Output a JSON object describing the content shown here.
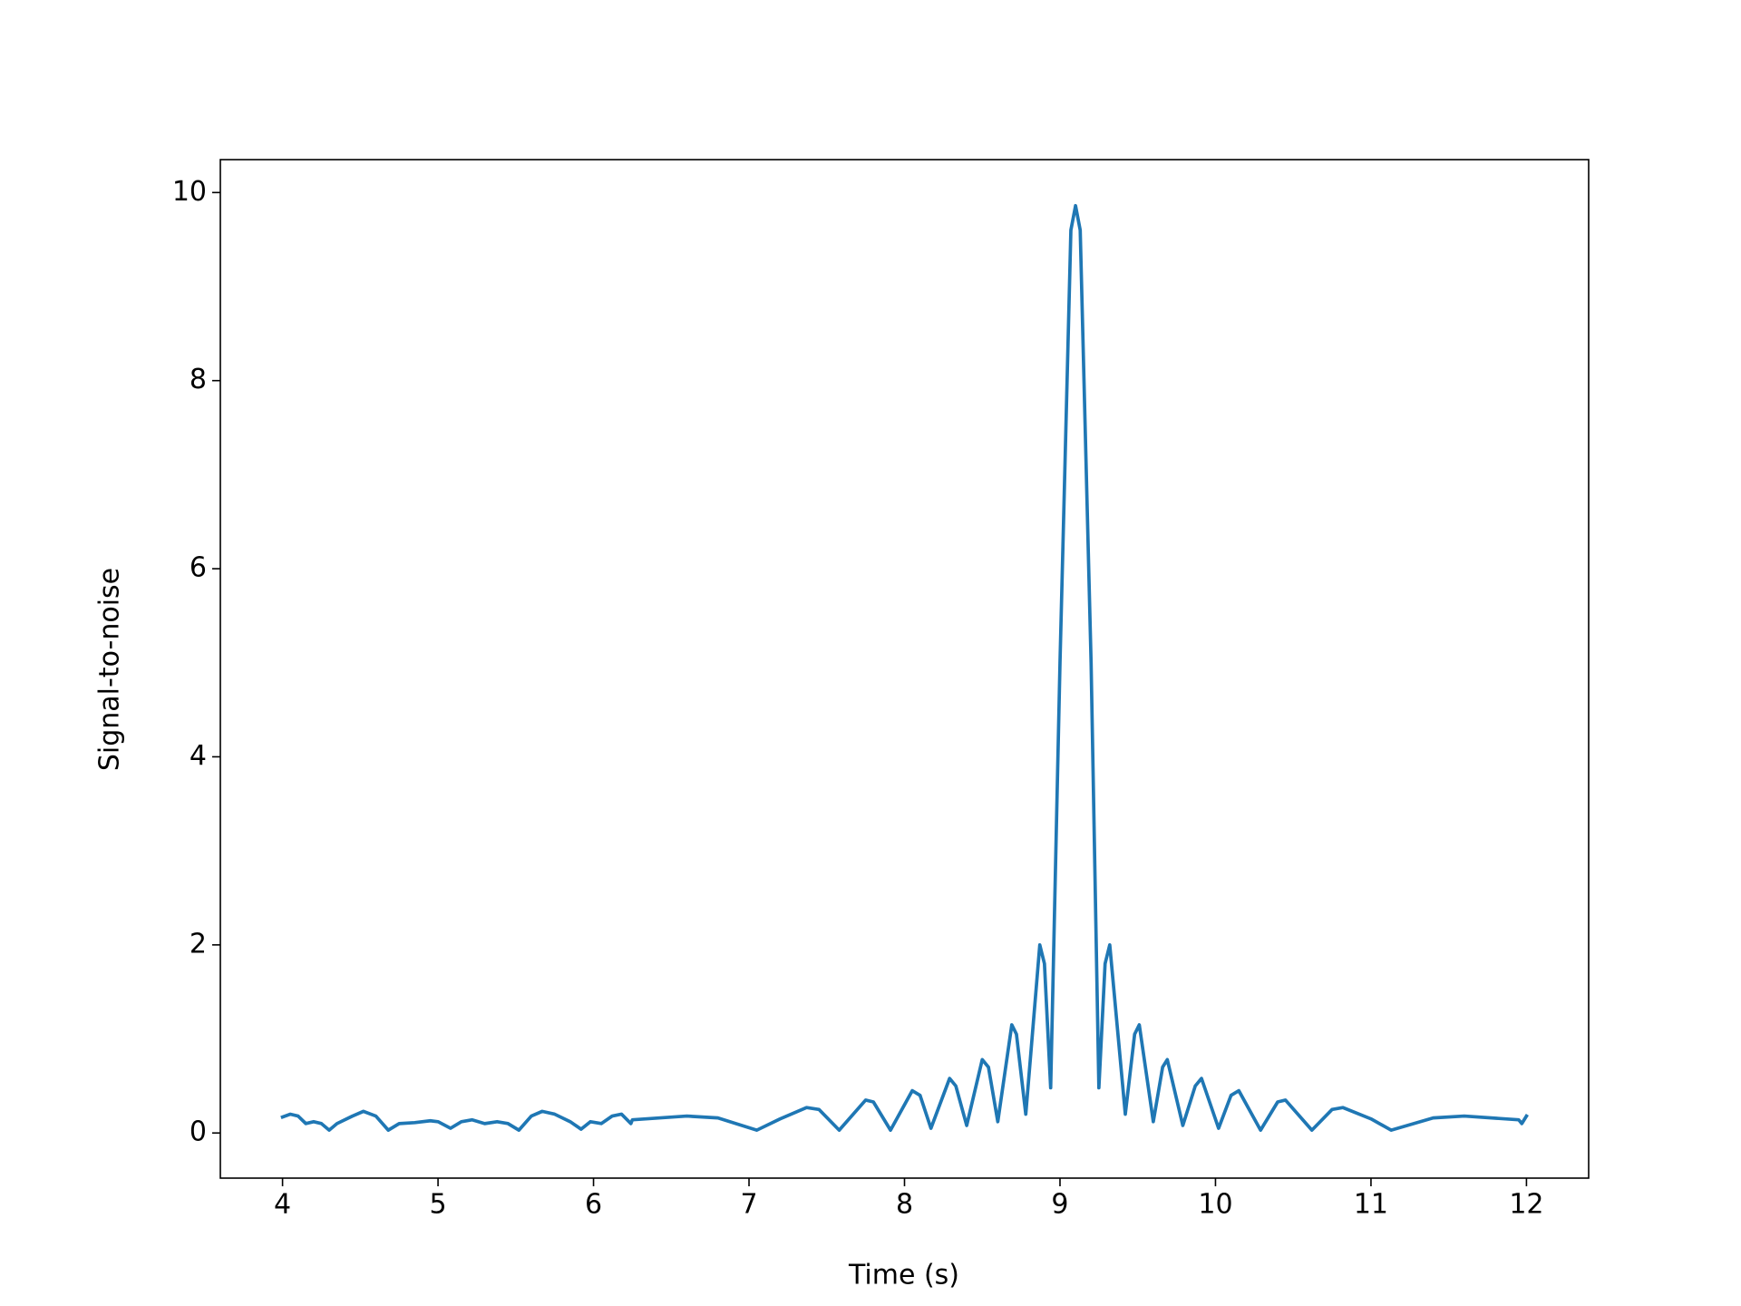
{
  "chart_data": {
    "type": "line",
    "x_label": "Time (s)",
    "y_label": "Signal-to-noise",
    "color": "#1f77b4",
    "x": [
      4.0,
      4.05,
      4.1,
      4.15,
      4.2,
      4.25,
      4.3,
      4.35,
      4.45,
      4.52,
      4.6,
      4.68,
      4.75,
      4.85,
      4.95,
      5.0,
      5.08,
      5.15,
      5.22,
      5.3,
      5.38,
      5.45,
      5.52,
      5.6,
      5.67,
      5.75,
      5.85,
      5.92,
      5.98,
      6.05,
      6.12,
      6.18,
      6.24,
      6.25,
      6.6,
      6.8,
      7.05,
      7.2,
      7.37,
      7.45,
      7.58,
      7.75,
      7.8,
      7.91,
      8.05,
      8.1,
      8.17,
      8.29,
      8.33,
      8.4,
      8.5,
      8.54,
      8.6,
      8.69,
      8.72,
      8.78,
      8.87,
      8.9,
      8.94,
      9.0,
      9.07,
      9.1,
      9.13,
      9.2,
      9.25,
      9.29,
      9.32,
      9.42,
      9.48,
      9.51,
      9.6,
      9.66,
      9.69,
      9.79,
      9.87,
      9.91,
      10.02,
      10.1,
      10.15,
      10.29,
      10.4,
      10.45,
      10.62,
      10.75,
      10.82,
      11.0,
      11.13,
      11.4,
      11.6,
      11.95,
      11.97,
      12.0
    ],
    "values": [
      0.17,
      0.2,
      0.18,
      0.1,
      0.12,
      0.1,
      0.03,
      0.1,
      0.18,
      0.23,
      0.18,
      0.03,
      0.1,
      0.11,
      0.13,
      0.12,
      0.05,
      0.12,
      0.14,
      0.1,
      0.12,
      0.1,
      0.03,
      0.18,
      0.23,
      0.2,
      0.12,
      0.04,
      0.12,
      0.1,
      0.18,
      0.2,
      0.1,
      0.14,
      0.18,
      0.16,
      0.03,
      0.15,
      0.27,
      0.25,
      0.03,
      0.35,
      0.33,
      0.03,
      0.45,
      0.4,
      0.05,
      0.58,
      0.5,
      0.08,
      0.78,
      0.7,
      0.12,
      1.15,
      1.05,
      0.2,
      2.0,
      1.8,
      0.48,
      5.0,
      9.6,
      9.86,
      9.6,
      5.0,
      0.48,
      1.8,
      2.0,
      0.2,
      1.05,
      1.15,
      0.12,
      0.7,
      0.78,
      0.08,
      0.5,
      0.58,
      0.05,
      0.4,
      0.45,
      0.03,
      0.33,
      0.35,
      0.03,
      0.25,
      0.27,
      0.15,
      0.03,
      0.16,
      0.18,
      0.14,
      0.1,
      0.18
    ],
    "xlim": [
      3.6,
      12.4
    ],
    "ylim": [
      -0.48,
      10.35
    ],
    "xticks": [
      4,
      5,
      6,
      7,
      8,
      9,
      10,
      11,
      12
    ],
    "yticks": [
      0,
      2,
      4,
      6,
      8,
      10
    ]
  }
}
